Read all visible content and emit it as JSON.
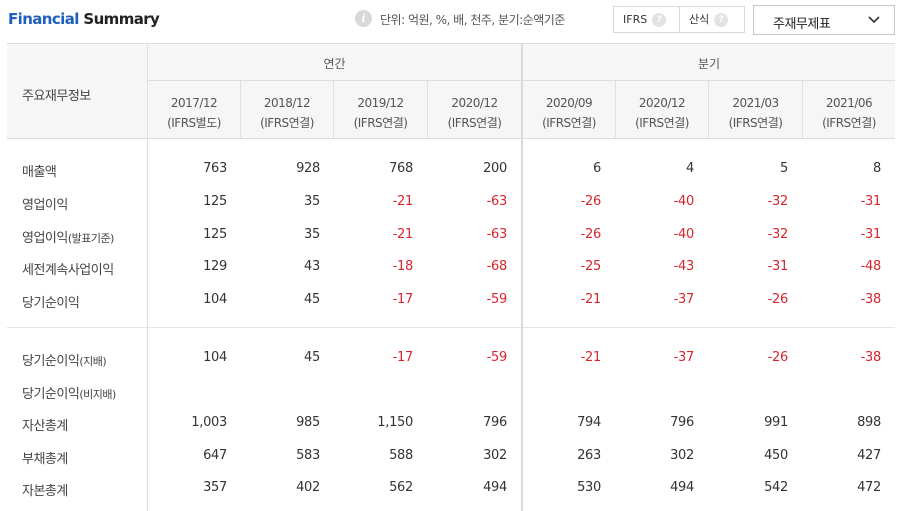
{
  "header": {
    "title_part1": "Financial",
    "title_part2": "Summary",
    "unit_text": "단위: 억원, %, 배, 천주, 분기:순액기준",
    "seg_btn1": "IFRS",
    "seg_btn2": "산식",
    "help_glyph": "?",
    "info_glyph": "i",
    "select_label": "주재무제표"
  },
  "table": {
    "corner_label": "주요재무정보",
    "annual_label": "연간",
    "quarter_label": "분기",
    "periods": [
      {
        "date": "2017/12",
        "basis": "(IFRS별도)"
      },
      {
        "date": "2018/12",
        "basis": "(IFRS연결)"
      },
      {
        "date": "2019/12",
        "basis": "(IFRS연결)"
      },
      {
        "date": "2020/12",
        "basis": "(IFRS연결)"
      },
      {
        "date": "2020/09",
        "basis": "(IFRS연결)"
      },
      {
        "date": "2020/12",
        "basis": "(IFRS연결)"
      },
      {
        "date": "2021/03",
        "basis": "(IFRS연결)"
      },
      {
        "date": "2021/06",
        "basis": "(IFRS연결)"
      }
    ],
    "rows": [
      {
        "label": "매출액",
        "sub": "",
        "values": [
          "763",
          "928",
          "768",
          "200",
          "6",
          "4",
          "5",
          "8"
        ]
      },
      {
        "label": "영업이익",
        "sub": "",
        "values": [
          "125",
          "35",
          "-21",
          "-63",
          "-26",
          "-40",
          "-32",
          "-31"
        ]
      },
      {
        "label": "영업이익",
        "sub": "(발표기준)",
        "values": [
          "125",
          "35",
          "-21",
          "-63",
          "-26",
          "-40",
          "-32",
          "-31"
        ]
      },
      {
        "label": "세전계속사업이익",
        "sub": "",
        "values": [
          "129",
          "43",
          "-18",
          "-68",
          "-25",
          "-43",
          "-31",
          "-48"
        ]
      },
      {
        "label": "당기순이익",
        "sub": "",
        "values": [
          "104",
          "45",
          "-17",
          "-59",
          "-21",
          "-37",
          "-26",
          "-38"
        ]
      },
      {
        "label": "당기순이익",
        "sub": "(지배)",
        "values": [
          "104",
          "45",
          "-17",
          "-59",
          "-21",
          "-37",
          "-26",
          "-38"
        ]
      },
      {
        "label": "당기순이익",
        "sub": "(비지배)",
        "values": [
          "",
          "",
          "",
          "",
          "",
          "",
          "",
          ""
        ]
      },
      {
        "label": "자산총계",
        "sub": "",
        "values": [
          "1,003",
          "985",
          "1,150",
          "796",
          "794",
          "796",
          "991",
          "898"
        ]
      },
      {
        "label": "부채총계",
        "sub": "",
        "values": [
          "647",
          "583",
          "588",
          "302",
          "263",
          "302",
          "450",
          "427"
        ]
      },
      {
        "label": "자본총계",
        "sub": "",
        "values": [
          "357",
          "402",
          "562",
          "494",
          "530",
          "494",
          "542",
          "472"
        ]
      }
    ]
  },
  "colors": {
    "brand_blue": "#1f5fbd",
    "negative_red": "#d7262e"
  }
}
